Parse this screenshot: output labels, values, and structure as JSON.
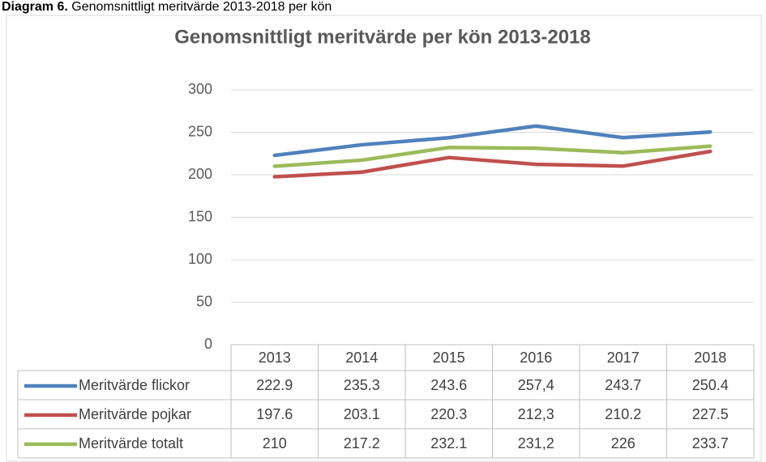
{
  "caption": {
    "label": "Diagram 6.",
    "text": "Genomsnittligt meritvärde 2013-2018 per kön"
  },
  "chart_data": {
    "type": "line",
    "title": "Genomsnittligt meritvärde per kön 2013-2018",
    "categories": [
      "2013",
      "2014",
      "2015",
      "2016",
      "2017",
      "2018"
    ],
    "series": [
      {
        "name": "Meritvärde flickor",
        "color": "#4f81bd",
        "values": [
          222.9,
          235.3,
          243.6,
          257.4,
          243.7,
          250.4
        ],
        "value_labels": [
          "222.9",
          "235.3",
          "243.6",
          "257,4",
          "243.7",
          "250.4"
        ]
      },
      {
        "name": "Meritvärde pojkar",
        "color": "#c0504d",
        "values": [
          197.6,
          203.1,
          220.3,
          212.3,
          210.2,
          227.5
        ],
        "value_labels": [
          "197.6",
          "203.1",
          "220.3",
          "212,3",
          "210.2",
          "227.5"
        ]
      },
      {
        "name": "Meritvärde totalt",
        "color": "#9bbb59",
        "values": [
          210,
          217.2,
          232.1,
          231.2,
          226,
          233.7
        ],
        "value_labels": [
          "210",
          "217.2",
          "232.1",
          "231,2",
          "226",
          "233.7"
        ]
      }
    ],
    "ylim": [
      0,
      300
    ],
    "yticks": [
      0,
      50,
      100,
      150,
      200,
      250,
      300
    ],
    "grid": true
  }
}
